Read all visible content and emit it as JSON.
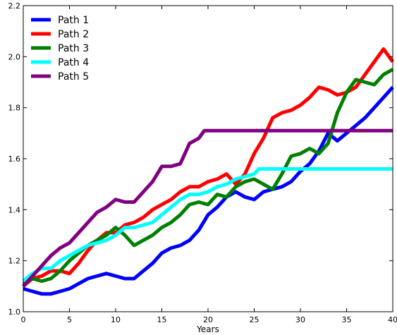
{
  "chart_data": {
    "type": "line",
    "xlabel": "Years",
    "ylabel": "",
    "xlim": [
      0,
      40
    ],
    "ylim": [
      1.0,
      2.2
    ],
    "xticks": [
      0,
      5,
      10,
      15,
      20,
      25,
      30,
      35,
      40
    ],
    "yticks": [
      1.0,
      1.2,
      1.4,
      1.6,
      1.8,
      2.0,
      2.2
    ],
    "xtick_labels": [
      "0",
      "5",
      "10",
      "15",
      "20",
      "25",
      "30",
      "35",
      "40"
    ],
    "ytick_labels": [
      "1.0",
      "1.2",
      "1.4",
      "1.6",
      "1.8",
      "2.0",
      "2.2"
    ],
    "grid": false,
    "legend": "top-left",
    "series": [
      {
        "name": "Path 1",
        "color": "#0000ff",
        "x": [
          0,
          1,
          2,
          3,
          4,
          5,
          6,
          7,
          8,
          9,
          10,
          11,
          12,
          13,
          14,
          15,
          16,
          17,
          18,
          19,
          20,
          21,
          22,
          23,
          24,
          25,
          26,
          27,
          28,
          29,
          30,
          31,
          32,
          33,
          34,
          35,
          36,
          37,
          38,
          39,
          40
        ],
        "values": [
          1.09,
          1.08,
          1.07,
          1.07,
          1.08,
          1.09,
          1.11,
          1.13,
          1.14,
          1.15,
          1.14,
          1.13,
          1.13,
          1.16,
          1.19,
          1.23,
          1.25,
          1.26,
          1.28,
          1.32,
          1.38,
          1.41,
          1.45,
          1.47,
          1.45,
          1.44,
          1.47,
          1.48,
          1.49,
          1.51,
          1.55,
          1.58,
          1.63,
          1.7,
          1.67,
          1.7,
          1.73,
          1.76,
          1.8,
          1.84,
          1.88
        ]
      },
      {
        "name": "Path 2",
        "color": "#ff0000",
        "x": [
          0,
          1,
          2,
          3,
          4,
          5,
          6,
          7,
          8,
          9,
          10,
          11,
          12,
          13,
          14,
          15,
          16,
          17,
          18,
          19,
          20,
          21,
          22,
          23,
          24,
          25,
          26,
          27,
          28,
          29,
          30,
          31,
          32,
          33,
          34,
          35,
          36,
          37,
          38,
          39,
          40
        ],
        "values": [
          1.1,
          1.13,
          1.14,
          1.16,
          1.16,
          1.15,
          1.19,
          1.24,
          1.28,
          1.31,
          1.31,
          1.34,
          1.35,
          1.37,
          1.4,
          1.42,
          1.44,
          1.47,
          1.49,
          1.49,
          1.51,
          1.52,
          1.54,
          1.5,
          1.54,
          1.62,
          1.68,
          1.76,
          1.78,
          1.79,
          1.81,
          1.84,
          1.88,
          1.87,
          1.85,
          1.86,
          1.88,
          1.93,
          1.98,
          2.03,
          1.98
        ]
      },
      {
        "name": "Path 3",
        "color": "#008000",
        "x": [
          0,
          1,
          2,
          3,
          4,
          5,
          6,
          7,
          8,
          9,
          10,
          11,
          12,
          13,
          14,
          15,
          16,
          17,
          18,
          19,
          20,
          21,
          22,
          23,
          24,
          25,
          26,
          27,
          28,
          29,
          30,
          31,
          32,
          33,
          34,
          35,
          36,
          37,
          38,
          39,
          40
        ],
        "values": [
          1.11,
          1.13,
          1.12,
          1.13,
          1.16,
          1.2,
          1.23,
          1.26,
          1.28,
          1.3,
          1.33,
          1.3,
          1.26,
          1.28,
          1.3,
          1.33,
          1.35,
          1.38,
          1.42,
          1.43,
          1.42,
          1.46,
          1.45,
          1.49,
          1.51,
          1.52,
          1.5,
          1.48,
          1.54,
          1.61,
          1.62,
          1.64,
          1.62,
          1.66,
          1.78,
          1.86,
          1.91,
          1.9,
          1.89,
          1.93,
          1.95
        ]
      },
      {
        "name": "Path 4",
        "color": "#00ffff",
        "x": [
          0,
          1,
          2,
          3,
          4,
          5,
          6,
          7,
          8,
          9,
          10,
          11,
          12,
          13,
          14,
          15,
          16,
          17,
          18,
          19,
          20,
          21,
          22,
          23,
          24,
          25,
          25.5,
          30,
          35,
          40
        ],
        "values": [
          1.12,
          1.15,
          1.17,
          1.17,
          1.2,
          1.22,
          1.24,
          1.26,
          1.27,
          1.28,
          1.3,
          1.33,
          1.33,
          1.34,
          1.35,
          1.38,
          1.41,
          1.44,
          1.46,
          1.46,
          1.47,
          1.49,
          1.5,
          1.52,
          1.53,
          1.54,
          1.56,
          1.56,
          1.56,
          1.56
        ]
      },
      {
        "name": "Path 5",
        "color": "#800080",
        "x": [
          0,
          1,
          2,
          3,
          4,
          5,
          6,
          7,
          8,
          9,
          10,
          11,
          12,
          13,
          14,
          15,
          16,
          17,
          18,
          19,
          19.6,
          25,
          30,
          35,
          40
        ],
        "values": [
          1.1,
          1.14,
          1.18,
          1.22,
          1.25,
          1.27,
          1.31,
          1.35,
          1.39,
          1.41,
          1.44,
          1.43,
          1.43,
          1.47,
          1.51,
          1.57,
          1.57,
          1.58,
          1.66,
          1.68,
          1.71,
          1.71,
          1.71,
          1.71,
          1.71
        ]
      }
    ]
  }
}
